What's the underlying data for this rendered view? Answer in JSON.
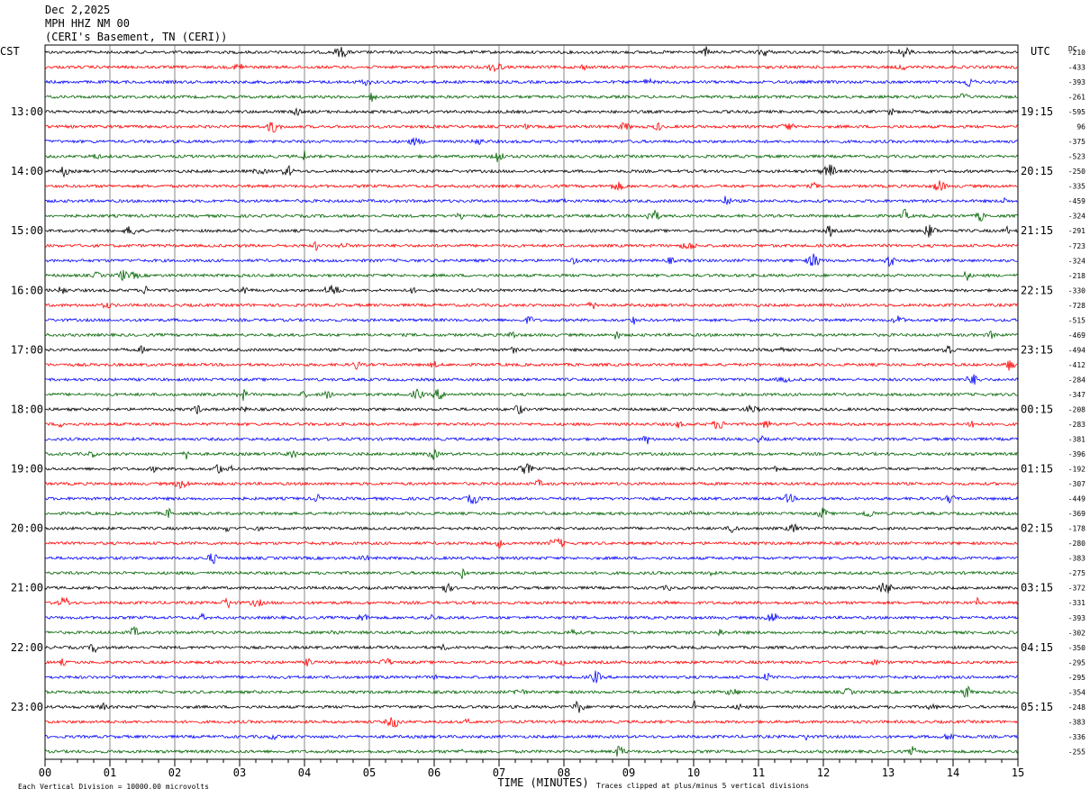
{
  "header": {
    "date": "Dec 2,2025",
    "station": "MPH HHZ NM 00",
    "location": "(CERI's Basement, TN (CERI))"
  },
  "chart_data": {
    "type": "line",
    "title": "Dec 2,2025",
    "left_axis_label": "CST",
    "right_axis_label": "UTC",
    "dc_label": "DC",
    "xlabel": "TIME (MINUTES)",
    "x_ticks": [
      "00",
      "01",
      "02",
      "03",
      "04",
      "05",
      "06",
      "07",
      "08",
      "09",
      "10",
      "11",
      "12",
      "13",
      "14",
      "15"
    ],
    "xlim": [
      0,
      15
    ],
    "left_hour_labels": [
      "13:00",
      "14:00",
      "15:00",
      "16:00",
      "17:00",
      "18:00",
      "19:00",
      "20:00",
      "21:00",
      "22:00",
      "23:00"
    ],
    "right_hour_labels": [
      "19:15",
      "20:15",
      "21:15",
      "22:15",
      "23:15",
      "00:15",
      "01:15",
      "02:15",
      "03:15",
      "04:15",
      "05:15"
    ],
    "traces_per_hour": 4,
    "first_labeled_trace_index": 4,
    "trace_colors": [
      "#000000",
      "#ff0000",
      "#0000ff",
      "#006400"
    ],
    "dc_offsets": [
      "-210",
      "-433",
      "-393",
      "-261",
      "-595",
      "96",
      "-375",
      "-523",
      "-250",
      "-335",
      "-459",
      "-324",
      "-291",
      "-723",
      "-324",
      "-218",
      "-330",
      "-728",
      "-515",
      "-469",
      "-494",
      "-412",
      "-284",
      "-347",
      "-208",
      "-283",
      "-381",
      "-396",
      "-192",
      "-307",
      "-449",
      "-369",
      "-178",
      "-280",
      "-383",
      "-275",
      "-372",
      "-331",
      "-393",
      "-302",
      "-350",
      "-295",
      "-295",
      "-354",
      "-248",
      "-383",
      "-336",
      "-255"
    ],
    "footer_left": "Each Vertical Division = 10000.00 microvolts",
    "footer_right": "Traces clipped at plus/minus 5 vertical divisions"
  }
}
